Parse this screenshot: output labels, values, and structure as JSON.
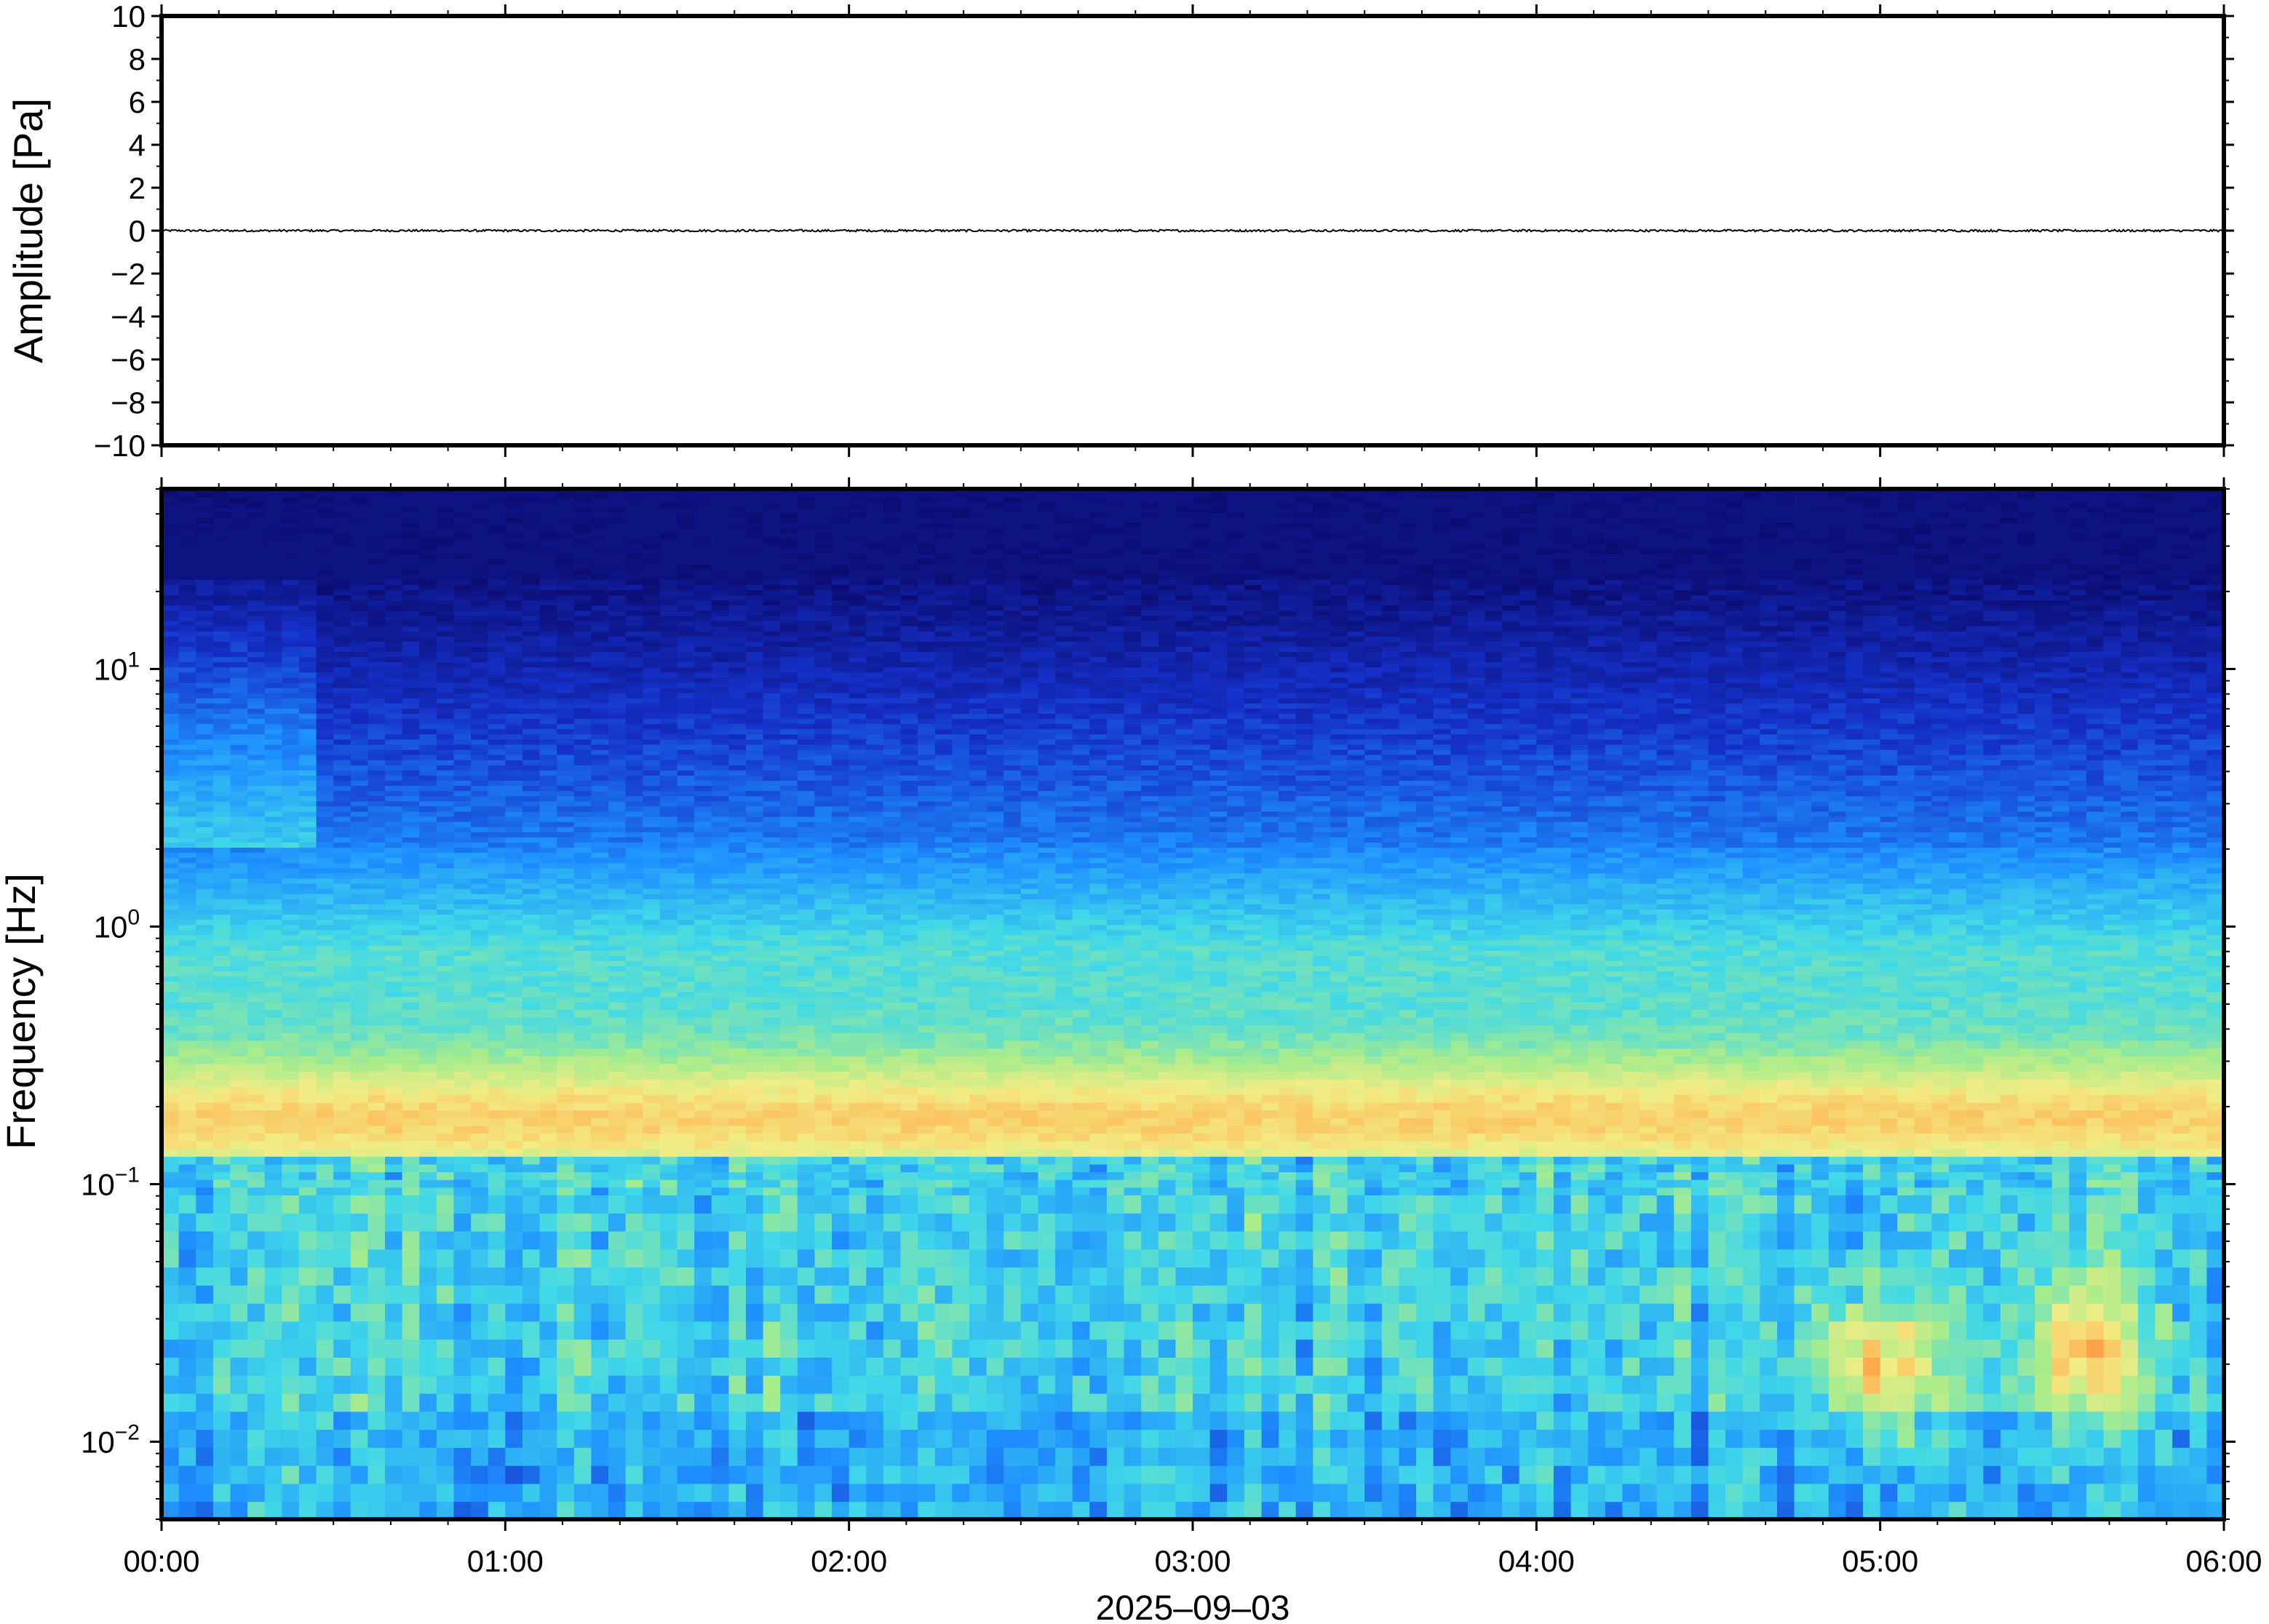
{
  "figure": {
    "date_label": "2025–09–03"
  },
  "chart_data": [
    {
      "type": "line",
      "ylabel": "Amplitude [Pa]",
      "xlabel": "",
      "ylim": [
        -10,
        10
      ],
      "yticks": [
        10,
        8,
        6,
        4,
        2,
        0,
        -2,
        -4,
        -6,
        -8,
        -10
      ],
      "ytick_labels": [
        "10",
        "8",
        "6",
        "4",
        "2",
        "0",
        "−2",
        "−4",
        "−6",
        "−8",
        "−10"
      ],
      "xlim_hours": [
        0,
        6
      ],
      "series": [
        {
          "values_description": "waveform ~0 Pa",
          "approx_value": 0,
          "approx_noise": 0.05
        }
      ],
      "colors": {
        "line": "#000000",
        "frame": "#000000",
        "background": "#ffffff"
      }
    },
    {
      "type": "heatmap",
      "ylabel": "Frequency [Hz]",
      "xlabel": "",
      "y_scale": "log",
      "ylim": [
        0.005,
        50
      ],
      "yticks": [
        10,
        1,
        0.1,
        0.01
      ],
      "ytick_labels": [
        {
          "base": "10",
          "exp": "1"
        },
        {
          "base": "10",
          "exp": "0"
        },
        {
          "base": "10",
          "exp": "−1"
        },
        {
          "base": "10",
          "exp": "−2"
        }
      ],
      "x": [
        "00:00",
        "01:00",
        "02:00",
        "03:00",
        "04:00",
        "05:00",
        "06:00"
      ],
      "xlim_hours": [
        0,
        6
      ],
      "colormap": [
        "#0b0b6e",
        "#1530c8",
        "#1e90ff",
        "#40d8e8",
        "#a8ec8c",
        "#f2ec84",
        "#ffb050",
        "#f07030"
      ],
      "features": {
        "microseism_peak_hz": 0.18,
        "hot_spots": [
          {
            "time_hours": 5.0,
            "freq_hz": 0.02
          },
          {
            "time_hours": 5.6,
            "freq_hz": 0.022
          }
        ]
      }
    }
  ]
}
